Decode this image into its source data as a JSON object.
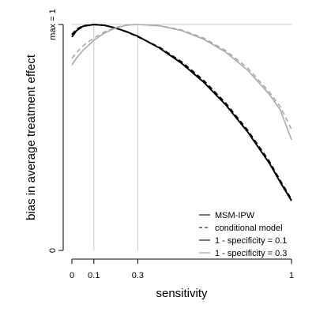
{
  "chart_data": {
    "type": "line",
    "xlabel": "sensitivity",
    "ylabel": "bias in average treatment effect",
    "xlim": [
      0,
      1
    ],
    "ylim": [
      0,
      1
    ],
    "x_ticks": [
      {
        "value": 0,
        "label": "0"
      },
      {
        "value": 0.1,
        "label": "0.1"
      },
      {
        "value": 0.3,
        "label": "0.3"
      },
      {
        "value": 1,
        "label": "1"
      }
    ],
    "y_ticks": [
      {
        "value": 0,
        "label": "0"
      },
      {
        "value": 1,
        "label": "max = 1"
      }
    ],
    "reference_lines": {
      "vertical": [
        0.1,
        0.3
      ],
      "horizontal": [
        1
      ]
    },
    "series": [
      {
        "name": "MSM-IPW",
        "group": "1 - specificity = 0.1",
        "color": "#000000",
        "dash": "solid",
        "x": [
          0,
          0.02,
          0.05,
          0.1,
          0.15,
          0.2,
          0.25,
          0.3,
          0.4,
          0.5,
          0.6,
          0.7,
          0.8,
          0.9,
          0.95,
          1
        ],
        "y": [
          0.945,
          0.972,
          0.992,
          1.0,
          0.996,
          0.984,
          0.968,
          0.948,
          0.895,
          0.828,
          0.745,
          0.645,
          0.525,
          0.385,
          0.3,
          0.22
        ]
      },
      {
        "name": "conditional model",
        "group": "1 - specificity = 0.1",
        "color": "#000000",
        "dash": "dashed",
        "x": [
          0,
          0.02,
          0.05,
          0.1,
          0.15,
          0.2,
          0.25,
          0.3,
          0.4,
          0.5,
          0.6,
          0.7,
          0.8,
          0.9,
          0.95,
          1
        ],
        "y": [
          0.955,
          0.978,
          0.994,
          1.0,
          0.996,
          0.984,
          0.967,
          0.946,
          0.898,
          0.834,
          0.752,
          0.652,
          0.532,
          0.392,
          0.307,
          0.225
        ]
      },
      {
        "name": "MSM-IPW",
        "group": "1 - specificity = 0.3",
        "color": "#aaaaaa",
        "dash": "solid",
        "x": [
          0,
          0.02,
          0.05,
          0.1,
          0.15,
          0.2,
          0.25,
          0.3,
          0.4,
          0.5,
          0.6,
          0.7,
          0.8,
          0.9,
          0.95,
          1
        ],
        "y": [
          0.82,
          0.85,
          0.885,
          0.93,
          0.963,
          0.985,
          0.997,
          1.0,
          0.994,
          0.973,
          0.935,
          0.878,
          0.798,
          0.69,
          0.62,
          0.49
        ]
      },
      {
        "name": "conditional model",
        "group": "1 - specificity = 0.3",
        "color": "#aaaaaa",
        "dash": "dashed",
        "x": [
          0,
          0.02,
          0.05,
          0.1,
          0.15,
          0.2,
          0.25,
          0.3,
          0.4,
          0.5,
          0.6,
          0.7,
          0.8,
          0.9,
          0.95,
          1
        ],
        "y": [
          0.85,
          0.875,
          0.905,
          0.94,
          0.968,
          0.987,
          0.997,
          1.0,
          0.995,
          0.976,
          0.94,
          0.885,
          0.808,
          0.7,
          0.635,
          0.535
        ]
      }
    ],
    "legend": {
      "position": "bottom-right",
      "items": [
        {
          "label": "MSM-IPW",
          "color": "#555555",
          "dash": "solid"
        },
        {
          "label": "conditional model",
          "color": "#555555",
          "dash": "dashed"
        },
        {
          "label": "1 - specificity = 0.1",
          "color": "#555555",
          "dash": "solid"
        },
        {
          "label": "1 - specificity = 0.3",
          "color": "#bbbbbb",
          "dash": "solid"
        }
      ]
    }
  }
}
